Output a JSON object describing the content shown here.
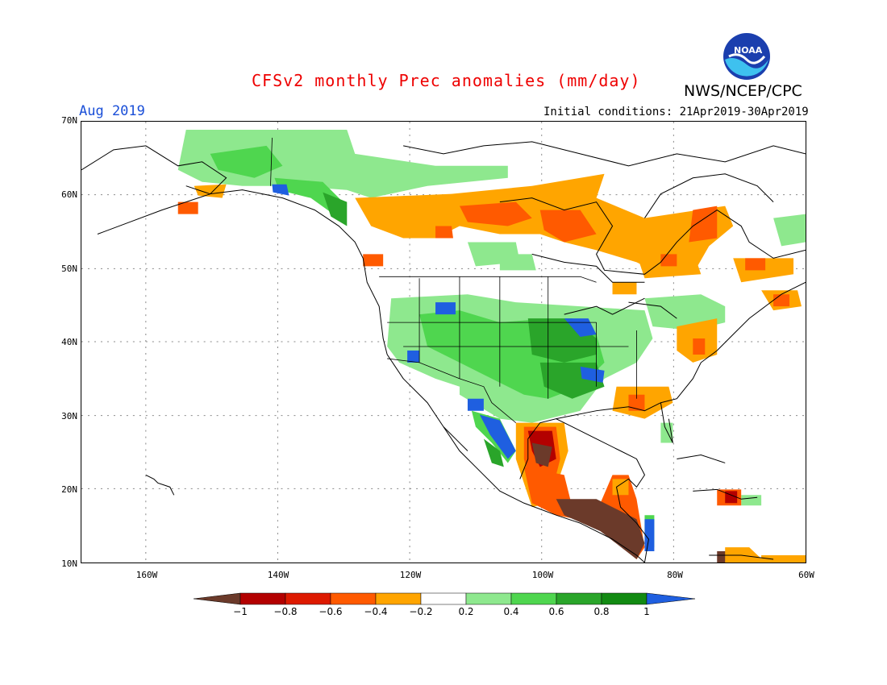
{
  "title": "CFSv2 monthly Prec anomalies (mm/day)",
  "agency": "NWS/NCEP/CPC",
  "logo_text": "NOAA",
  "target_month": "Aug 2019",
  "initial_conditions": "Initial conditions: 21Apr2019-30Apr2019",
  "lat_labels": [
    "70N",
    "60N",
    "50N",
    "40N",
    "30N",
    "20N",
    "10N"
  ],
  "lon_labels": [
    "160W",
    "140W",
    "120W",
    "100W",
    "80W",
    "60W"
  ],
  "colorbar": {
    "labels": [
      "−1",
      "−0.8",
      "−0.6",
      "−0.4",
      "−0.2",
      "0.2",
      "0.4",
      "0.6",
      "0.8",
      "1"
    ],
    "colors": [
      "#6b3a2a",
      "#b30000",
      "#dd1a00",
      "#ff5a00",
      "#ffa500",
      "#ffffff",
      "#8ee88e",
      "#4fd64f",
      "#2aa52a",
      "#128a12",
      "#1f5fe0"
    ]
  },
  "colors": {
    "title": "#ee0000",
    "month": "#1a4fd8",
    "dry_extreme": "#6b3a2a",
    "dry_strong": "#dd2200",
    "dry_moderate": "#ff5a00",
    "dry_weak": "#ffa500",
    "wet_weak": "#8ee88e",
    "wet_moderate": "#4fd64f",
    "wet_strong": "#2aa52a",
    "wet_extreme": "#1f5fe0"
  }
}
